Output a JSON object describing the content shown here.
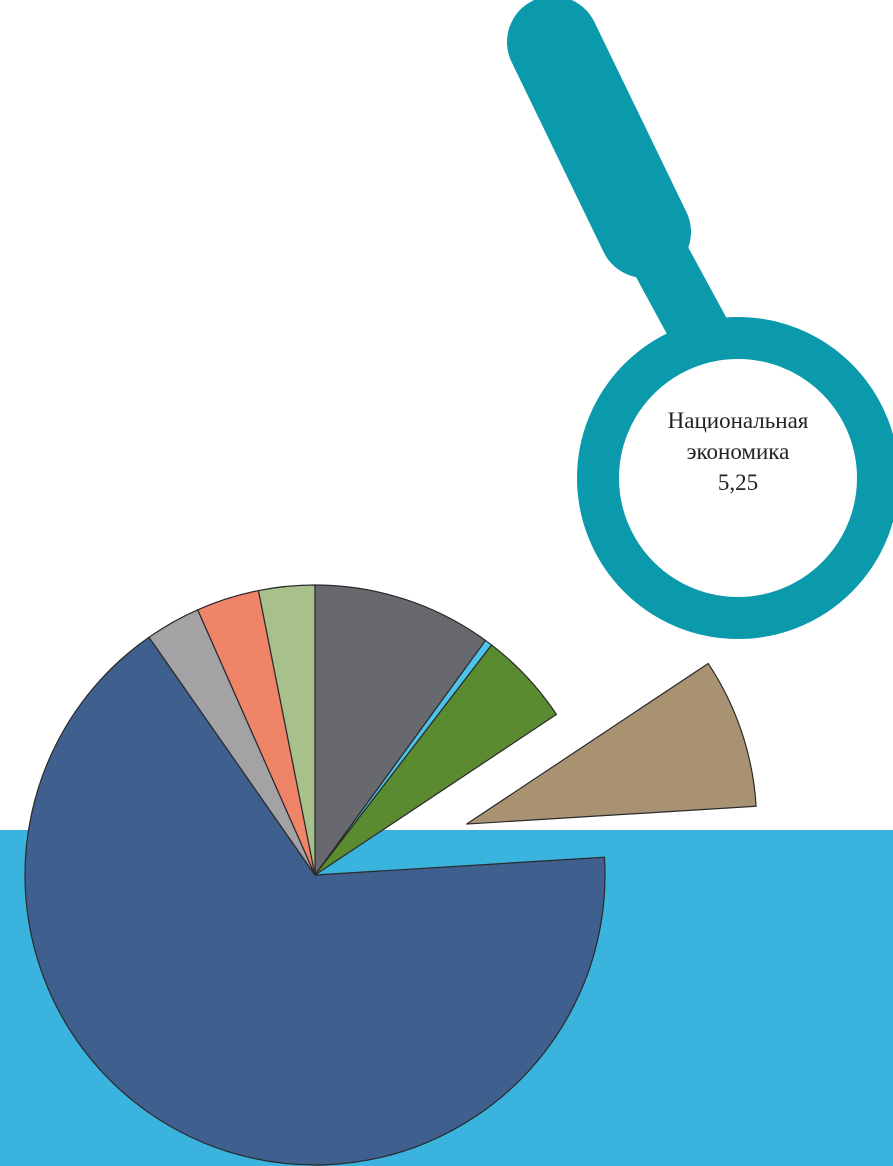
{
  "chart_data": {
    "type": "pie",
    "categories": [
      null,
      null,
      null,
      "Национальная экономика",
      null,
      null,
      null,
      null
    ],
    "values": [
      6.28,
      0.26,
      3.29,
      5.25,
      41.6,
      1.93,
      2.2,
      1.96
    ],
    "value_labels": [
      null,
      null,
      null,
      "5,25",
      null,
      null,
      null,
      null
    ],
    "colors": [
      "#68696e",
      "#4cc4ea",
      "#5b8b30",
      "#a89272",
      "#3f5f8e",
      "#a3a3a6",
      "#ef8468",
      "#a8c18c"
    ]
  }
}
